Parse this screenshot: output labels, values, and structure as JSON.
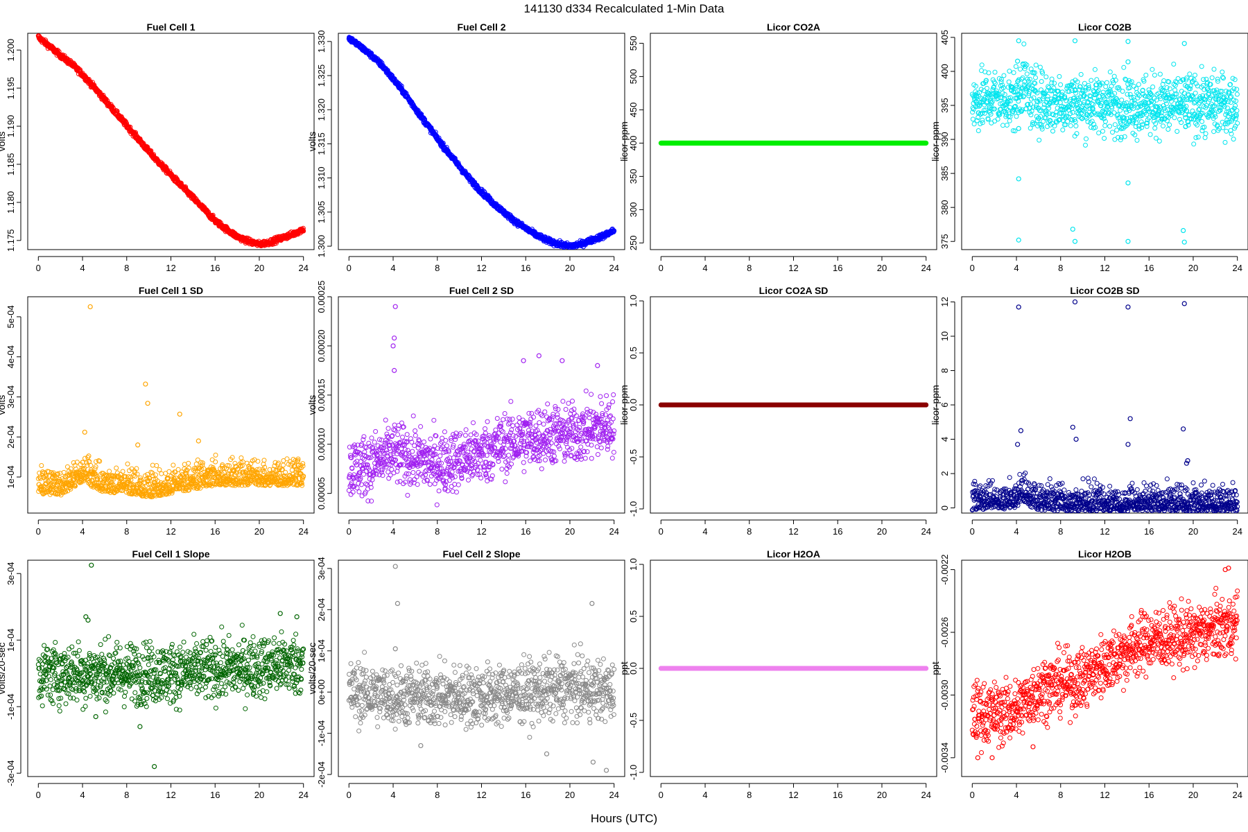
{
  "figure": {
    "title": "141130   d334   Recalculated 1-Min Data",
    "xlabel": "Hours (UTC)"
  },
  "chart_data": [
    {
      "type": "scatter",
      "title": "Fuel Cell 1",
      "ylabel": "volts",
      "color": "#ff0000",
      "xlim": [
        0,
        24
      ],
      "ylim": [
        1.1738,
        1.2022
      ],
      "yticks": [
        1.175,
        1.18,
        1.185,
        1.19,
        1.195,
        1.2
      ],
      "ytick_labels": [
        "1.175",
        "1.180",
        "1.185",
        "1.190",
        "1.195",
        "1.200"
      ],
      "xticks": [
        0,
        4,
        8,
        12,
        16,
        20,
        24
      ],
      "x": [
        0,
        1,
        2,
        3,
        4,
        5,
        6,
        7,
        8,
        9,
        10,
        11,
        12,
        13,
        14,
        15,
        16,
        17,
        18,
        19,
        20,
        21,
        22,
        23,
        24
      ],
      "y": [
        1.2017,
        1.2005,
        1.1993,
        1.1982,
        1.1968,
        1.1952,
        1.1935,
        1.1918,
        1.1901,
        1.1884,
        1.1867,
        1.1851,
        1.1836,
        1.1821,
        1.1806,
        1.1791,
        1.1776,
        1.1765,
        1.1755,
        1.1749,
        1.1745,
        1.1748,
        1.1753,
        1.1758,
        1.1765
      ]
    },
    {
      "type": "scatter",
      "title": "Fuel Cell 2",
      "ylabel": "volts",
      "color": "#0000ff",
      "xlim": [
        0,
        24
      ],
      "ylim": [
        1.2995,
        1.3312
      ],
      "yticks": [
        1.3,
        1.305,
        1.31,
        1.315,
        1.32,
        1.325,
        1.33
      ],
      "ytick_labels": [
        "1.300",
        "1.305",
        "1.310",
        "1.315",
        "1.320",
        "1.325",
        "1.330"
      ],
      "xticks": [
        0,
        4,
        8,
        12,
        16,
        20,
        24
      ],
      "x": [
        0,
        1,
        2,
        3,
        4,
        5,
        6,
        7,
        8,
        9,
        10,
        11,
        12,
        13,
        14,
        15,
        16,
        17,
        18,
        19,
        20,
        21,
        22,
        23,
        24
      ],
      "y": [
        1.3305,
        1.3293,
        1.328,
        1.3265,
        1.3245,
        1.3225,
        1.3202,
        1.318,
        1.3158,
        1.3137,
        1.3117,
        1.3097,
        1.308,
        1.3064,
        1.305,
        1.3037,
        1.3026,
        1.3016,
        1.3008,
        1.3003,
        1.3,
        1.3003,
        1.3009,
        1.3015,
        1.3023
      ]
    },
    {
      "type": "scatter",
      "title": "Licor CO2A",
      "ylabel": "licor-ppm",
      "color": "#00ee00",
      "xlim": [
        0,
        24
      ],
      "ylim": [
        240,
        565
      ],
      "yticks": [
        250,
        300,
        350,
        400,
        450,
        500,
        550
      ],
      "ytick_labels": [
        "250",
        "300",
        "350",
        "400",
        "450",
        "500",
        "550"
      ],
      "xticks": [
        0,
        4,
        8,
        12,
        16,
        20,
        24
      ],
      "x": [
        0,
        24
      ],
      "y": [
        400,
        400
      ]
    },
    {
      "type": "scatter",
      "title": "Licor CO2B",
      "ylabel": "licor-ppm",
      "color": "#00e5ee",
      "xlim": [
        0,
        24
      ],
      "ylim": [
        373.8,
        405.6
      ],
      "yticks": [
        375,
        380,
        385,
        390,
        395,
        400,
        405
      ],
      "ytick_labels": [
        "375",
        "380",
        "385",
        "390",
        "395",
        "400",
        "405"
      ],
      "xticks": [
        0,
        4,
        8,
        12,
        16,
        20,
        24
      ],
      "x": [
        0,
        1,
        2,
        3,
        4,
        4.3,
        4.6,
        5,
        5.5,
        6,
        8,
        10,
        12,
        14,
        16,
        18,
        20,
        22,
        24
      ],
      "y": [
        395.5,
        395.8,
        396,
        395.9,
        395.7,
        397.5,
        399,
        396.5,
        396,
        395.6,
        395.4,
        395.3,
        395.2,
        395.2,
        395,
        395,
        395.1,
        395.1,
        395
      ],
      "outliers": [
        [
          4.2,
          404.5
        ],
        [
          4.2,
          375.2
        ],
        [
          4.2,
          384.2
        ],
        [
          4.2,
          391.6
        ],
        [
          4.1,
          401.5
        ],
        [
          9.3,
          404.5
        ],
        [
          9.3,
          375
        ],
        [
          9.1,
          376.8
        ],
        [
          9.3,
          397.2
        ],
        [
          14.1,
          404.4
        ],
        [
          14.1,
          375
        ],
        [
          14.1,
          383.6
        ],
        [
          14.2,
          392.7
        ],
        [
          14.1,
          401.4
        ],
        [
          19.2,
          404.1
        ],
        [
          19.2,
          374.9
        ],
        [
          19.1,
          376.6
        ],
        [
          19.3,
          393.2
        ],
        [
          19.4,
          394.2
        ]
      ]
    },
    {
      "type": "scatter",
      "title": "Fuel Cell 1 SD",
      "ylabel": "volts",
      "color": "#ffa500",
      "xlim": [
        0,
        24
      ],
      "ylim": [
        1e-05,
        0.00055
      ],
      "yticks": [
        0.0001,
        0.0002,
        0.0003,
        0.0004,
        0.0005
      ],
      "ytick_labels": [
        "1e-04",
        "2e-04",
        "3e-04",
        "4e-04",
        "5e-04"
      ],
      "xticks": [
        0,
        4,
        8,
        12,
        16,
        20,
        24
      ],
      "x": [
        0,
        2,
        4,
        6,
        8,
        10,
        12,
        14,
        16,
        18,
        20,
        22,
        24
      ],
      "y": [
        7e-05,
        6.5e-05,
        0.0001,
        7e-05,
        7e-05,
        6e-05,
        7e-05,
        8e-05,
        9e-05,
        9e-05,
        9e-05,
        9e-05,
        9e-05
      ],
      "outliers": [
        [
          4.7,
          0.000525
        ],
        [
          9.7,
          0.000332
        ],
        [
          9.9,
          0.000284
        ],
        [
          12.8,
          0.000257
        ],
        [
          4.2,
          0.000212
        ],
        [
          14.5,
          0.00019
        ],
        [
          9.0,
          0.00018
        ]
      ]
    },
    {
      "type": "scatter",
      "title": "Fuel Cell 2 SD",
      "ylabel": "volts",
      "color": "#a020f0",
      "xlim": [
        0,
        24
      ],
      "ylim": [
        3e-05,
        0.00025
      ],
      "yticks": [
        5e-05,
        0.0001,
        0.00015,
        0.0002,
        0.00025
      ],
      "ytick_labels": [
        "0.00005",
        "0.00010",
        "0.00015",
        "0.00020",
        "0.00025"
      ],
      "xticks": [
        0,
        4,
        8,
        12,
        16,
        20,
        24
      ],
      "x": [
        0,
        2,
        4,
        6,
        8,
        10,
        12,
        14,
        16,
        18,
        20,
        22,
        24
      ],
      "y": [
        7.5e-05,
        8e-05,
        9e-05,
        8.5e-05,
        8e-05,
        8.5e-05,
        9e-05,
        0.0001,
        0.000105,
        0.00011,
        0.00011,
        0.000115,
        0.00012
      ],
      "outliers": [
        [
          4.2,
          0.00024
        ],
        [
          4.1,
          0.000208
        ],
        [
          4.0,
          0.0002
        ],
        [
          4.1,
          0.000175
        ],
        [
          17.2,
          0.00019
        ],
        [
          19.3,
          0.000185
        ],
        [
          22.5,
          0.00018
        ],
        [
          15.8,
          0.000185
        ]
      ]
    },
    {
      "type": "scatter",
      "title": "Licor CO2A SD",
      "ylabel": "licor-ppm",
      "color": "#8b0000",
      "xlim": [
        0,
        24
      ],
      "ylim": [
        -1.04,
        1.04
      ],
      "yticks": [
        -1,
        -0.5,
        0,
        0.5,
        1
      ],
      "ytick_labels": [
        "-1.0",
        "-0.5",
        "0.0",
        "0.5",
        "1.0"
      ],
      "xticks": [
        0,
        4,
        8,
        12,
        16,
        20,
        24
      ],
      "x": [
        0,
        24
      ],
      "y": [
        0,
        0
      ]
    },
    {
      "type": "scatter",
      "title": "Licor CO2B SD",
      "ylabel": "licor-ppm",
      "color": "#00008b",
      "xlim": [
        0,
        24
      ],
      "ylim": [
        -0.3,
        12.3
      ],
      "yticks": [
        0,
        2,
        4,
        6,
        8,
        10,
        12
      ],
      "ytick_labels": [
        "0",
        "2",
        "4",
        "6",
        "8",
        "10",
        "12"
      ],
      "xticks": [
        0,
        4,
        8,
        12,
        16,
        20,
        24
      ],
      "x": [
        0,
        2,
        4,
        4.5,
        5,
        6,
        8,
        12,
        16,
        20,
        24
      ],
      "y": [
        0.1,
        0.2,
        0.2,
        0.8,
        0.4,
        0.15,
        0.08,
        0.06,
        0.05,
        0.05,
        0.05
      ],
      "outliers": [
        [
          4.2,
          11.7
        ],
        [
          9.3,
          12
        ],
        [
          14.1,
          11.7
        ],
        [
          19.2,
          11.9
        ],
        [
          4.4,
          4.5
        ],
        [
          9.1,
          4.7
        ],
        [
          14.3,
          5.2
        ],
        [
          19.1,
          4.6
        ],
        [
          4.1,
          3.7
        ],
        [
          9.4,
          4.0
        ],
        [
          14.1,
          3.7
        ],
        [
          19.4,
          2.6
        ],
        [
          19.5,
          2.75
        ],
        [
          4.9,
          1.5
        ],
        [
          9.3,
          0.25
        ],
        [
          19.5,
          0.25
        ]
      ]
    },
    {
      "type": "scatter",
      "title": "Fuel Cell 1 Slope",
      "ylabel": "volts/20-sec",
      "color": "#006400",
      "xlim": [
        0,
        24
      ],
      "ylim": [
        -0.00031,
        0.00034
      ],
      "yticks": [
        -0.0003,
        -0.0001,
        0.0001,
        0.0003
      ],
      "ytick_labels": [
        "-3e-04",
        "-1e-04",
        "1e-04",
        "3e-04"
      ],
      "xticks": [
        0,
        4,
        8,
        12,
        16,
        20,
        24
      ],
      "x": [
        0,
        4,
        8,
        12,
        16,
        20,
        24
      ],
      "y": [
        0,
        0,
        0,
        0,
        1e-05,
        2e-05,
        3e-05
      ],
      "outliers": [
        [
          4.8,
          0.000325
        ],
        [
          4.3,
          0.00017
        ],
        [
          4.5,
          0.00016
        ],
        [
          10.5,
          -0.00028
        ],
        [
          9.2,
          -0.00016
        ],
        [
          5.2,
          -0.00013
        ],
        [
          21.9,
          0.00018
        ],
        [
          23.4,
          0.00017
        ]
      ]
    },
    {
      "type": "scatter",
      "title": "Fuel Cell 2 Slope",
      "ylabel": "volts/20-sec",
      "color": "#888888",
      "xlim": [
        0,
        24
      ],
      "ylim": [
        -0.000205,
        0.00032
      ],
      "yticks": [
        -0.0002,
        -0.0001,
        0,
        0.0001,
        0.0002,
        0.0003
      ],
      "ytick_labels": [
        "-2e-04",
        "-1e-04",
        "0e+00",
        "1e-04",
        "2e-04",
        "3e-04"
      ],
      "xticks": [
        0,
        4,
        8,
        12,
        16,
        20,
        24
      ],
      "x": [
        0,
        4,
        8,
        12,
        16,
        20,
        24
      ],
      "y": [
        0,
        -1e-05,
        -1e-05,
        -1e-05,
        0,
        1e-05,
        0
      ],
      "outliers": [
        [
          4.2,
          0.000305
        ],
        [
          4.4,
          0.000215
        ],
        [
          4.2,
          0.000105
        ],
        [
          22.0,
          0.000215
        ],
        [
          23.3,
          -0.00019
        ],
        [
          22.1,
          -0.00017
        ],
        [
          17.9,
          -0.00015
        ],
        [
          6.5,
          -0.00013
        ]
      ]
    },
    {
      "type": "scatter",
      "title": "Licor H2OA",
      "ylabel": "ppt",
      "color": "#ee82ee",
      "xlim": [
        0,
        24
      ],
      "ylim": [
        -1.04,
        1.04
      ],
      "yticks": [
        -1,
        -0.5,
        0,
        0.5,
        1
      ],
      "ytick_labels": [
        "-1.0",
        "-0.5",
        "0.0",
        "0.5",
        "1.0"
      ],
      "xticks": [
        0,
        4,
        8,
        12,
        16,
        20,
        24
      ],
      "x": [
        0,
        24
      ],
      "y": [
        0,
        0
      ]
    },
    {
      "type": "scatter",
      "title": "Licor H2OB",
      "ylabel": "ppt",
      "color": "#ff0000",
      "xlim": [
        0,
        24
      ],
      "ylim": [
        -0.00352,
        -0.00214
      ],
      "yticks": [
        -0.0034,
        -0.003,
        -0.0026,
        -0.0022
      ],
      "ytick_labels": [
        "-0.0034",
        "-0.0030",
        "-0.0026",
        "-0.0022"
      ],
      "xticks": [
        0,
        4,
        8,
        12,
        16,
        20,
        24
      ],
      "x": [
        0,
        2,
        4,
        6,
        8,
        10,
        12,
        14,
        16,
        18,
        20,
        22,
        24
      ],
      "y": [
        -0.00311,
        -0.00312,
        -0.0031,
        -0.00296,
        -0.00293,
        -0.0029,
        -0.0028,
        -0.00272,
        -0.00265,
        -0.00264,
        -0.00262,
        -0.00258,
        -0.00255
      ],
      "outliers": [
        [
          23.2,
          -0.00219
        ],
        [
          0.5,
          -0.0034
        ],
        [
          1.8,
          -0.0034
        ],
        [
          5.5,
          -0.00333
        ],
        [
          22.9,
          -0.0022
        ]
      ]
    }
  ]
}
